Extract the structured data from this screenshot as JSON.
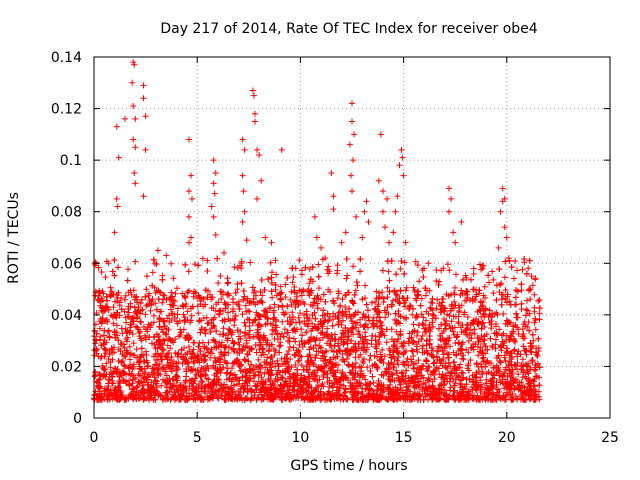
{
  "chart_data": {
    "type": "scatter",
    "title": "Day 217 of 2014, Rate Of TEC Index for receiver obe4",
    "xlabel": "GPS time / hours",
    "ylabel": "ROTI / TECUs",
    "xlim": [
      0,
      25
    ],
    "ylim": [
      0,
      0.14
    ],
    "xticks": [
      0,
      5,
      10,
      15,
      20,
      25
    ],
    "xtick_labels": [
      "0",
      "5",
      "10",
      "15",
      "20",
      "25"
    ],
    "yticks": [
      0,
      0.02,
      0.04,
      0.06,
      0.08,
      0.1,
      0.12,
      0.14
    ],
    "ytick_labels": [
      "0",
      "0.02",
      "0.04",
      "0.06",
      "0.08",
      "0.1",
      "0.12",
      "0.14"
    ],
    "grid": true,
    "marker": "+",
    "color": "#ff0000",
    "data_range_hours": [
      0,
      21.6
    ],
    "series": [
      {
        "name": "ROTI",
        "band_low": 0.007,
        "band_typical": 0.03,
        "band_high": 0.05,
        "spike_points": [
          {
            "x": 1.1,
            "y": 0.113
          },
          {
            "x": 1.2,
            "y": 0.101
          },
          {
            "x": 1.1,
            "y": 0.085
          },
          {
            "x": 1.15,
            "y": 0.082
          },
          {
            "x": 1.5,
            "y": 0.116
          },
          {
            "x": 1.9,
            "y": 0.138
          },
          {
            "x": 1.95,
            "y": 0.137
          },
          {
            "x": 1.85,
            "y": 0.13
          },
          {
            "x": 1.9,
            "y": 0.121
          },
          {
            "x": 2.0,
            "y": 0.116
          },
          {
            "x": 1.9,
            "y": 0.108
          },
          {
            "x": 2.0,
            "y": 0.105
          },
          {
            "x": 1.95,
            "y": 0.095
          },
          {
            "x": 2.0,
            "y": 0.091
          },
          {
            "x": 2.4,
            "y": 0.129
          },
          {
            "x": 2.4,
            "y": 0.124
          },
          {
            "x": 2.5,
            "y": 0.117
          },
          {
            "x": 2.5,
            "y": 0.104
          },
          {
            "x": 2.4,
            "y": 0.086
          },
          {
            "x": 1.0,
            "y": 0.072
          },
          {
            "x": 4.6,
            "y": 0.108
          },
          {
            "x": 4.7,
            "y": 0.094
          },
          {
            "x": 4.6,
            "y": 0.088
          },
          {
            "x": 4.75,
            "y": 0.085
          },
          {
            "x": 4.6,
            "y": 0.078
          },
          {
            "x": 4.7,
            "y": 0.07
          },
          {
            "x": 4.6,
            "y": 0.068
          },
          {
            "x": 5.8,
            "y": 0.1
          },
          {
            "x": 5.9,
            "y": 0.095
          },
          {
            "x": 5.8,
            "y": 0.091
          },
          {
            "x": 5.85,
            "y": 0.087
          },
          {
            "x": 5.7,
            "y": 0.082
          },
          {
            "x": 5.8,
            "y": 0.078
          },
          {
            "x": 5.9,
            "y": 0.071
          },
          {
            "x": 7.2,
            "y": 0.108
          },
          {
            "x": 7.3,
            "y": 0.104
          },
          {
            "x": 7.2,
            "y": 0.094
          },
          {
            "x": 7.25,
            "y": 0.088
          },
          {
            "x": 7.3,
            "y": 0.08
          },
          {
            "x": 7.2,
            "y": 0.076
          },
          {
            "x": 7.4,
            "y": 0.069
          },
          {
            "x": 7.7,
            "y": 0.127
          },
          {
            "x": 7.75,
            "y": 0.125
          },
          {
            "x": 7.8,
            "y": 0.118
          },
          {
            "x": 7.8,
            "y": 0.115
          },
          {
            "x": 7.9,
            "y": 0.104
          },
          {
            "x": 8.0,
            "y": 0.102
          },
          {
            "x": 8.1,
            "y": 0.092
          },
          {
            "x": 7.9,
            "y": 0.085
          },
          {
            "x": 8.3,
            "y": 0.07
          },
          {
            "x": 8.6,
            "y": 0.068
          },
          {
            "x": 9.1,
            "y": 0.104
          },
          {
            "x": 10.7,
            "y": 0.078
          },
          {
            "x": 10.8,
            "y": 0.07
          },
          {
            "x": 11.0,
            "y": 0.066
          },
          {
            "x": 11.2,
            "y": 0.062
          },
          {
            "x": 11.5,
            "y": 0.095
          },
          {
            "x": 11.6,
            "y": 0.086
          },
          {
            "x": 11.6,
            "y": 0.081
          },
          {
            "x": 12.5,
            "y": 0.122
          },
          {
            "x": 12.5,
            "y": 0.115
          },
          {
            "x": 12.6,
            "y": 0.11
          },
          {
            "x": 12.4,
            "y": 0.106
          },
          {
            "x": 12.55,
            "y": 0.1
          },
          {
            "x": 12.45,
            "y": 0.094
          },
          {
            "x": 12.5,
            "y": 0.088
          },
          {
            "x": 12.7,
            "y": 0.078
          },
          {
            "x": 12.2,
            "y": 0.072
          },
          {
            "x": 12.0,
            "y": 0.068
          },
          {
            "x": 13.2,
            "y": 0.084
          },
          {
            "x": 13.1,
            "y": 0.08
          },
          {
            "x": 13.3,
            "y": 0.076
          },
          {
            "x": 13.0,
            "y": 0.07
          },
          {
            "x": 13.9,
            "y": 0.11
          },
          {
            "x": 13.8,
            "y": 0.092
          },
          {
            "x": 14.0,
            "y": 0.088
          },
          {
            "x": 14.2,
            "y": 0.085
          },
          {
            "x": 14.0,
            "y": 0.08
          },
          {
            "x": 14.1,
            "y": 0.074
          },
          {
            "x": 14.3,
            "y": 0.068
          },
          {
            "x": 14.8,
            "y": 0.098
          },
          {
            "x": 14.9,
            "y": 0.104
          },
          {
            "x": 14.95,
            "y": 0.101
          },
          {
            "x": 15.0,
            "y": 0.094
          },
          {
            "x": 14.7,
            "y": 0.086
          },
          {
            "x": 14.6,
            "y": 0.08
          },
          {
            "x": 14.5,
            "y": 0.072
          },
          {
            "x": 15.1,
            "y": 0.068
          },
          {
            "x": 17.2,
            "y": 0.089
          },
          {
            "x": 17.3,
            "y": 0.085
          },
          {
            "x": 17.2,
            "y": 0.08
          },
          {
            "x": 17.4,
            "y": 0.072
          },
          {
            "x": 17.8,
            "y": 0.076
          },
          {
            "x": 17.5,
            "y": 0.068
          },
          {
            "x": 19.8,
            "y": 0.089
          },
          {
            "x": 19.9,
            "y": 0.085
          },
          {
            "x": 19.8,
            "y": 0.084
          },
          {
            "x": 19.7,
            "y": 0.08
          },
          {
            "x": 19.9,
            "y": 0.074
          },
          {
            "x": 20.0,
            "y": 0.07
          },
          {
            "x": 19.6,
            "y": 0.066
          },
          {
            "x": 20.1,
            "y": 0.062
          },
          {
            "x": 3.1,
            "y": 0.065
          },
          {
            "x": 3.5,
            "y": 0.063
          },
          {
            "x": 0.7,
            "y": 0.06
          },
          {
            "x": 6.3,
            "y": 0.064
          },
          {
            "x": 9.6,
            "y": 0.058
          },
          {
            "x": 16.2,
            "y": 0.06
          },
          {
            "x": 18.4,
            "y": 0.058
          },
          {
            "x": 21.2,
            "y": 0.055
          }
        ]
      }
    ]
  }
}
